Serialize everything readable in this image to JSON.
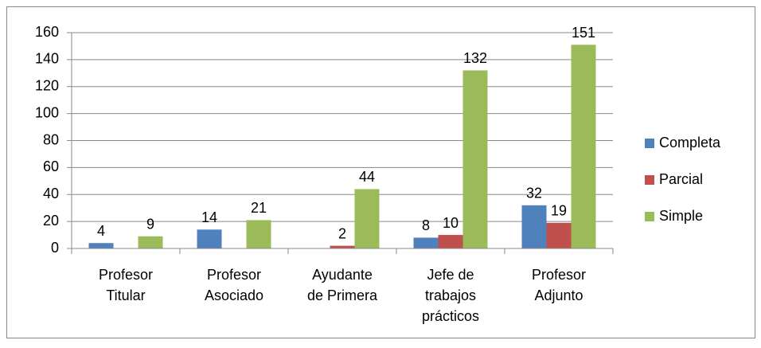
{
  "chart_data": {
    "type": "bar",
    "categories": [
      "Profesor\nTitular",
      "Profesor\nAsociado",
      "Ayudante\nde Primera",
      "Jefe de\ntrabajos\nprácticos",
      "Profesor\nAdjunto"
    ],
    "series": [
      {
        "name": "Completa",
        "color": "#4f81bd",
        "values": [
          4,
          14,
          null,
          8,
          32
        ]
      },
      {
        "name": "Parcial",
        "color": "#c0504d",
        "values": [
          null,
          null,
          2,
          10,
          19
        ]
      },
      {
        "name": "Simple",
        "color": "#9bbb59",
        "values": [
          9,
          21,
          44,
          132,
          151
        ]
      }
    ],
    "ylim": [
      0,
      160
    ],
    "yticks": [
      0,
      20,
      40,
      60,
      80,
      100,
      120,
      140,
      160
    ],
    "grid": true,
    "legend": "right"
  }
}
